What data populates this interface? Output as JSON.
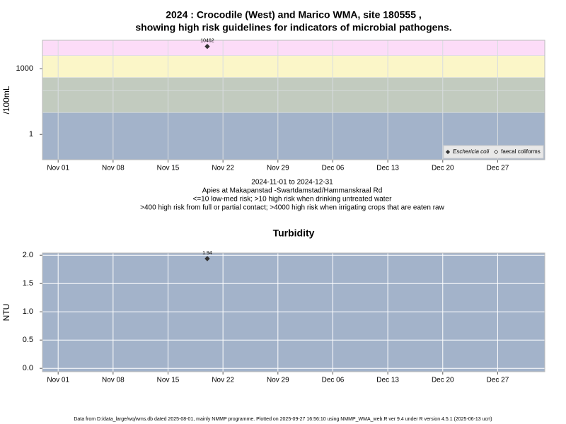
{
  "chart_data": [
    {
      "type": "scatter",
      "title": [
        "2024 : Crocodile (West) and Marico WMA, site 180555 ,",
        "showing high risk guidelines for indicators of microbial pathogens."
      ],
      "notes": [
        "2024-11-01 to 2024-12-31",
        "Apies at Makapanstad -Swartdamstad/Hammanskraal Rd",
        "<=10 low-med risk; >10 high risk when drinking untreated water",
        ">400 high risk from full or partial contact; >4000 high risk when irrigating crops that are eaten raw"
      ],
      "y_label": "/100mL",
      "log_scale": true,
      "x": [
        "2024-11-20"
      ],
      "xlim": [
        "2024-10-30",
        "2025-01-02"
      ],
      "xticks": [
        {
          "value": "2024-11-01",
          "label": "Nov 01"
        },
        {
          "value": "2024-11-08",
          "label": "Nov 08"
        },
        {
          "value": "2024-11-15",
          "label": "Nov 15"
        },
        {
          "value": "2024-11-22",
          "label": "Nov 22"
        },
        {
          "value": "2024-11-29",
          "label": "Nov 29"
        },
        {
          "value": "2024-12-06",
          "label": "Dec 06"
        },
        {
          "value": "2024-12-13",
          "label": "Dec 13"
        },
        {
          "value": "2024-12-20",
          "label": "Dec 20"
        },
        {
          "value": "2024-12-27",
          "label": "Dec 27"
        }
      ],
      "ylim": [
        0.07,
        20000
      ],
      "yticks": [
        1,
        1000
      ],
      "thresholds": [
        10,
        100,
        400,
        4000
      ],
      "band_colors": [
        "#a3b3ca",
        "#c2cbbf",
        "#c2cbbf",
        "#fbf6c8",
        "#fcdcf8"
      ],
      "grid_color": "#d9dde0",
      "series": [
        {
          "name": "Eschericia coli",
          "color": "#333333",
          "filled": true,
          "italic": true,
          "values": [
            10462
          ]
        },
        {
          "name": "faecal coliforms",
          "color": "#333333",
          "filled": false,
          "italic": false,
          "values": [
            null
          ]
        }
      ],
      "legend": "bottom-right"
    },
    {
      "type": "scatter",
      "title": [
        "Turbidity"
      ],
      "y_label": "NTU",
      "log_scale": false,
      "x": [
        "2024-11-20"
      ],
      "xlim": [
        "2024-10-30",
        "2025-01-02"
      ],
      "xticks": [
        {
          "value": "2024-11-01",
          "label": "Nov 01"
        },
        {
          "value": "2024-11-08",
          "label": "Nov 08"
        },
        {
          "value": "2024-11-15",
          "label": "Nov 15"
        },
        {
          "value": "2024-11-22",
          "label": "Nov 22"
        },
        {
          "value": "2024-11-29",
          "label": "Nov 29"
        },
        {
          "value": "2024-12-06",
          "label": "Dec 06"
        },
        {
          "value": "2024-12-13",
          "label": "Dec 13"
        },
        {
          "value": "2024-12-20",
          "label": "Dec 20"
        },
        {
          "value": "2024-12-27",
          "label": "Dec 27"
        }
      ],
      "ylim": [
        -0.06,
        2.04
      ],
      "yticks": [
        {
          "value": 0,
          "label": "0.0"
        },
        0.5,
        {
          "value": 1,
          "label": "1.0"
        },
        1.5,
        {
          "value": 2,
          "label": "2.0"
        }
      ],
      "background": "#a3b3ca",
      "grid": true,
      "grid_color": "#ffffff",
      "series": [
        {
          "name": "Turbidity",
          "color": "#333333",
          "filled": true,
          "values": [
            1.94
          ]
        }
      ]
    }
  ],
  "footer": "Data from D:/data_large/wq/wms.db dated 2025-08-01, mainly NMMP programme. Plotted on 2025-09-27 16:56:10 using NMMP_WMA_web.R ver 9.4 under R version 4.5.1 (2025-06-13 ucrt)"
}
